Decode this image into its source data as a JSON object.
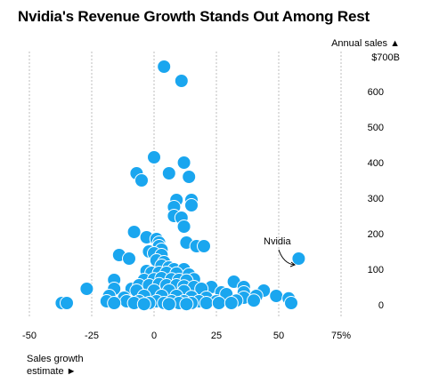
{
  "chart_data": {
    "type": "scatter",
    "title": "Nvidia's Revenue Growth Stands Out Among Rest",
    "ylabel_line1": "Annual sales ▲",
    "ylabel_line2": "$700B",
    "xlabel_line1": "Sales growth",
    "xlabel_line2": "estimate ►",
    "xlim": [
      -50,
      75
    ],
    "ylim": [
      -20,
      700
    ],
    "x_ticks": [
      -50,
      -25,
      0,
      25,
      50,
      75
    ],
    "x_tick_labels": [
      "-50",
      "-25",
      "0",
      "25",
      "50",
      "75%"
    ],
    "y_ticks": [
      0,
      100,
      200,
      300,
      400,
      500,
      600
    ],
    "y_tick_labels": [
      "0",
      "100",
      "200",
      "300",
      "400",
      "500",
      "600"
    ],
    "grid": "vertical-dashed",
    "point_color": "#1aa6ef",
    "annotation": {
      "label": "Nvidia",
      "x": 58,
      "y": 130
    },
    "points": [
      {
        "x": 58,
        "y": 130
      },
      {
        "x": 4,
        "y": 670
      },
      {
        "x": 11,
        "y": 630
      },
      {
        "x": 0,
        "y": 415
      },
      {
        "x": 12,
        "y": 400
      },
      {
        "x": -7,
        "y": 370
      },
      {
        "x": 6,
        "y": 370
      },
      {
        "x": 14,
        "y": 360
      },
      {
        "x": -5,
        "y": 350
      },
      {
        "x": 9,
        "y": 295
      },
      {
        "x": 15,
        "y": 295
      },
      {
        "x": 15,
        "y": 280
      },
      {
        "x": 8,
        "y": 275
      },
      {
        "x": 8,
        "y": 250
      },
      {
        "x": 11,
        "y": 245
      },
      {
        "x": 12,
        "y": 220
      },
      {
        "x": -8,
        "y": 205
      },
      {
        "x": -3,
        "y": 190
      },
      {
        "x": 1,
        "y": 185
      },
      {
        "x": 2,
        "y": 175
      },
      {
        "x": 13,
        "y": 175
      },
      {
        "x": 2,
        "y": 165
      },
      {
        "x": 17,
        "y": 165
      },
      {
        "x": 20,
        "y": 165
      },
      {
        "x": 3,
        "y": 155
      },
      {
        "x": -2,
        "y": 150
      },
      {
        "x": 0,
        "y": 145
      },
      {
        "x": 3,
        "y": 140
      },
      {
        "x": -14,
        "y": 140
      },
      {
        "x": -10,
        "y": 130
      },
      {
        "x": 1,
        "y": 125
      },
      {
        "x": 4,
        "y": 120
      },
      {
        "x": 3,
        "y": 110
      },
      {
        "x": 6,
        "y": 105
      },
      {
        "x": 8,
        "y": 100
      },
      {
        "x": 12,
        "y": 100
      },
      {
        "x": -3,
        "y": 95
      },
      {
        "x": -1,
        "y": 90
      },
      {
        "x": 2,
        "y": 90
      },
      {
        "x": 5,
        "y": 90
      },
      {
        "x": 9,
        "y": 88
      },
      {
        "x": 14,
        "y": 85
      },
      {
        "x": -16,
        "y": 70
      },
      {
        "x": 16,
        "y": 72
      },
      {
        "x": 32,
        "y": 65
      },
      {
        "x": -4,
        "y": 70
      },
      {
        "x": 0,
        "y": 72
      },
      {
        "x": 3,
        "y": 75
      },
      {
        "x": 7,
        "y": 72
      },
      {
        "x": 10,
        "y": 70
      },
      {
        "x": 13,
        "y": 68
      },
      {
        "x": -27,
        "y": 45
      },
      {
        "x": -16,
        "y": 45
      },
      {
        "x": -9,
        "y": 45
      },
      {
        "x": 23,
        "y": 50
      },
      {
        "x": 36,
        "y": 50
      },
      {
        "x": 44,
        "y": 40
      },
      {
        "x": -6,
        "y": 55
      },
      {
        "x": -2,
        "y": 55
      },
      {
        "x": 2,
        "y": 58
      },
      {
        "x": 5,
        "y": 55
      },
      {
        "x": 9,
        "y": 55
      },
      {
        "x": 12,
        "y": 52
      },
      {
        "x": 16,
        "y": 50
      },
      {
        "x": 19,
        "y": 45
      },
      {
        "x": -7,
        "y": 40
      },
      {
        "x": 0,
        "y": 40
      },
      {
        "x": 6,
        "y": 40
      },
      {
        "x": 12,
        "y": 38
      },
      {
        "x": 27,
        "y": 35
      },
      {
        "x": 36,
        "y": 35
      },
      {
        "x": 29,
        "y": 30
      },
      {
        "x": -18,
        "y": 25
      },
      {
        "x": 41,
        "y": 25
      },
      {
        "x": 49,
        "y": 25
      },
      {
        "x": -12,
        "y": 20
      },
      {
        "x": -4,
        "y": 25
      },
      {
        "x": 3,
        "y": 25
      },
      {
        "x": 9,
        "y": 25
      },
      {
        "x": 15,
        "y": 22
      },
      {
        "x": 21,
        "y": 20
      },
      {
        "x": 36,
        "y": 20
      },
      {
        "x": 54,
        "y": 18
      },
      {
        "x": 33,
        "y": 12
      },
      {
        "x": -19,
        "y": 10
      },
      {
        "x": -11,
        "y": 10
      },
      {
        "x": -6,
        "y": 10
      },
      {
        "x": 1,
        "y": 10
      },
      {
        "x": 7,
        "y": 10
      },
      {
        "x": 12,
        "y": 10
      },
      {
        "x": 18,
        "y": 10
      },
      {
        "x": 25,
        "y": 10
      },
      {
        "x": 40,
        "y": 12
      },
      {
        "x": -37,
        "y": 5
      },
      {
        "x": -35,
        "y": 5
      },
      {
        "x": -16,
        "y": 5
      },
      {
        "x": -8,
        "y": 5
      },
      {
        "x": -2,
        "y": 5
      },
      {
        "x": 4,
        "y": 5
      },
      {
        "x": 10,
        "y": 5
      },
      {
        "x": 15,
        "y": 5
      },
      {
        "x": 21,
        "y": 5
      },
      {
        "x": 26,
        "y": 5
      },
      {
        "x": 31,
        "y": 5
      },
      {
        "x": 55,
        "y": 5
      },
      {
        "x": -4,
        "y": 2
      },
      {
        "x": 6,
        "y": 2
      },
      {
        "x": 13,
        "y": 2
      }
    ]
  }
}
